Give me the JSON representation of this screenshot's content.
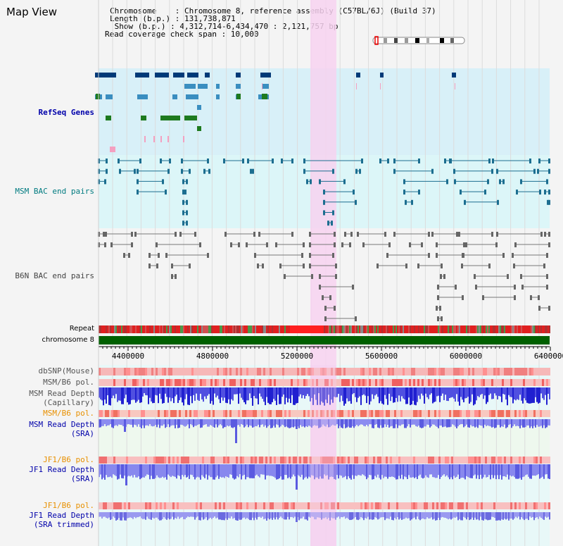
{
  "view_title": "Map View",
  "header": {
    "chromosome_line": "Chromosome    : Chromosome 8, reference assembly (C57BL/6J) (Build 37)",
    "length_line": "Length (b.p.) : 131,738,871",
    "show_line": " Show (b.p.) : 4,312,714-6,434,470 : 2,121,757 bp",
    "coverage_line": "Read coverage check span : 10,000"
  },
  "tracks": {
    "refseq": "RefSeq Genes",
    "msm_bac": "MSM BAC end pairs",
    "b6n_bac": "B6N BAC end pairs",
    "repeat": "Repeat",
    "chromosome": "chromosome 8",
    "dbsnp": "dbSNP(Mouse)",
    "msm_b6_pol_1": "MSM/B6 pol.",
    "msm_depth_cap_1": "MSM Read Depth",
    "msm_depth_cap_2": "(Capillary)",
    "msm_b6_pol_2": "MSM/B6 pol.",
    "msm_depth_sra_1": "MSM Read Depth",
    "msm_depth_sra_2": "(SRA)",
    "jf1_b6_pol_1": "JF1/B6 pol.",
    "jf1_depth_sra_1": "JF1 Read Depth",
    "jf1_depth_sra_2": "(SRA)",
    "jf1_b6_pol_2": "JF1/B6 pol.",
    "jf1_depth_trim_1": "JF1 Read Depth",
    "jf1_depth_trim_2": "(SRA trimmed)"
  },
  "axis": {
    "ticks": [
      "4400000",
      "4800000",
      "5200000",
      "5600000",
      "6000000",
      "6400000"
    ]
  },
  "colors": {
    "highlight": "#f7d2f0",
    "refseq_bg": "#d8f0f8",
    "bac_bg": "#dcf6f8",
    "label_blue": "#0000aa",
    "label_teal": "#007b80",
    "label_orange": "#e89000",
    "chromosome_bar": "#006000"
  }
}
